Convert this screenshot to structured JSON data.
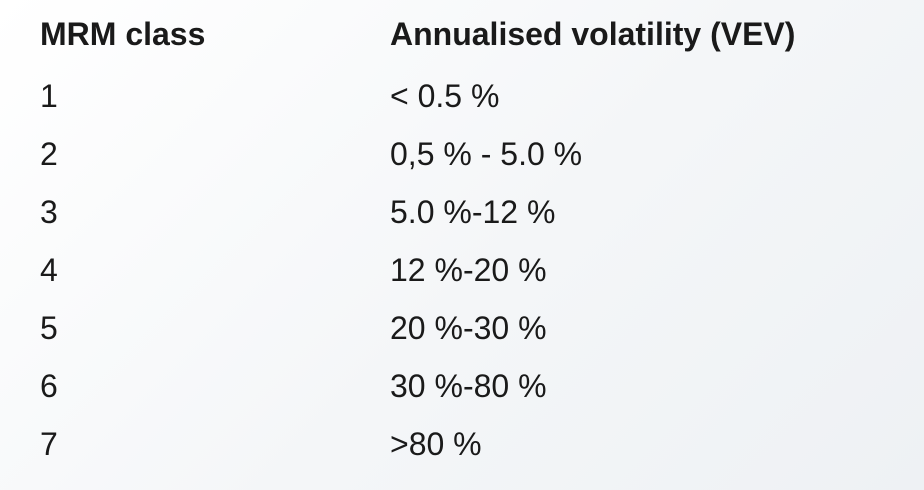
{
  "table": {
    "header": [
      "MRM class",
      "Annualised volatility (VEV)"
    ],
    "rows": [
      [
        "1",
        "< 0.5 %"
      ],
      [
        "2",
        "0,5 % - 5.0 %"
      ],
      [
        "3",
        "5.0 %-12 %"
      ],
      [
        "4",
        "12 %-20 %"
      ],
      [
        "5",
        "20 %-30 %"
      ],
      [
        "6",
        "30 %-80 %"
      ],
      [
        7,
        ">80 %"
      ]
    ]
  }
}
